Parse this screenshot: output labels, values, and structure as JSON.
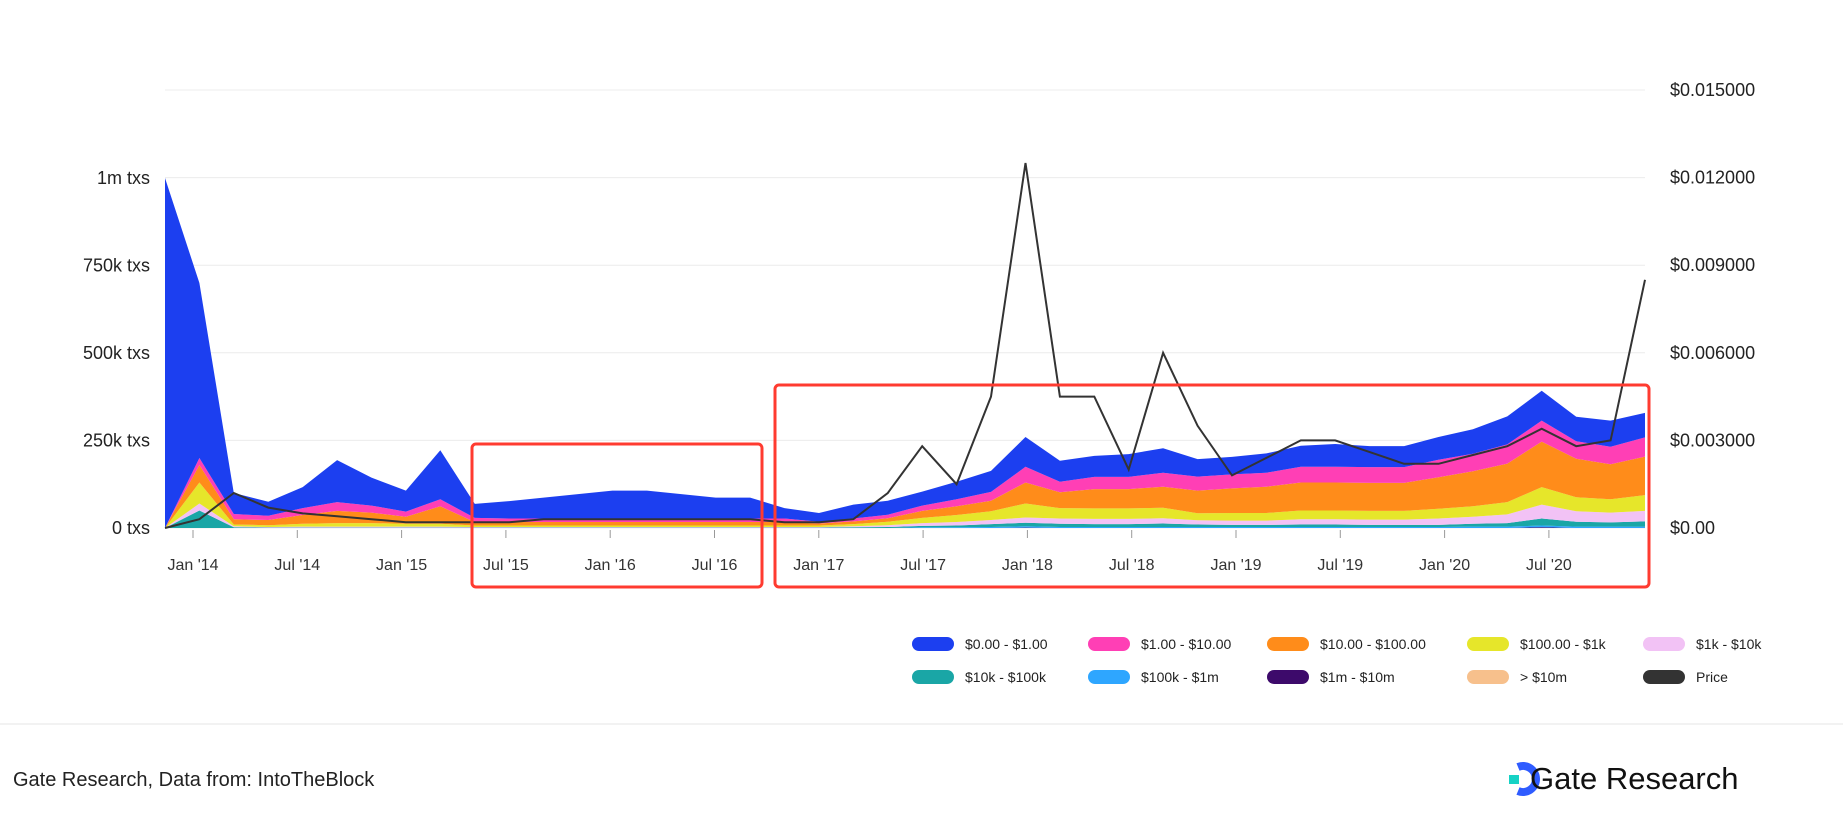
{
  "footer": {
    "source": "Gate Research, Data from: IntoTheBlock",
    "brand": "Gate Research"
  },
  "chart_data": {
    "type": "area",
    "x": [
      "Nov '13",
      "Jan '14",
      "Mar '14",
      "May '14",
      "Jul '14",
      "Sep '14",
      "Nov '14",
      "Jan '15",
      "Mar '15",
      "May '15",
      "Jul '15",
      "Sep '15",
      "Nov '15",
      "Jan '16",
      "Mar '16",
      "May '16",
      "Jul '16",
      "Sep '16",
      "Nov '16",
      "Jan '17",
      "Mar '17",
      "May '17",
      "Jul '17",
      "Sep '17",
      "Nov '17",
      "Jan '18",
      "Mar '18",
      "May '18",
      "Jul '18",
      "Sep '18",
      "Nov '18",
      "Jan '19",
      "Mar '19",
      "May '19",
      "Jul '19",
      "Sep '19",
      "Nov '19",
      "Jan '20",
      "Mar '20",
      "May '20",
      "Jul '20",
      "Sep '20",
      "Nov '20",
      "Dec '20"
    ],
    "x_ticks": [
      "Jan '14",
      "Jul '14",
      "Jan '15",
      "Jul '15",
      "Jan '16",
      "Jul '16",
      "Jan '17",
      "Jul '17",
      "Jan '18",
      "Jul '18",
      "Jan '19",
      "Jul '19",
      "Jan '20",
      "Jul '20"
    ],
    "y_left": {
      "ticks": [
        "0 txs",
        "250k txs",
        "500k txs",
        "750k txs",
        "1m txs"
      ],
      "range": [
        0,
        1250000
      ]
    },
    "y_right": {
      "ticks": [
        "$0.00",
        "$0.003000",
        "$0.006000",
        "$0.009000",
        "$0.012000",
        "$0.015000"
      ],
      "range": [
        0,
        0.015
      ]
    },
    "series": [
      {
        "name": "> $10m",
        "color": "#f7c08c",
        "values": [
          0,
          0,
          0,
          0,
          0,
          0,
          0,
          0,
          0,
          0,
          0,
          0,
          0,
          0,
          0,
          0,
          0,
          0,
          0,
          0,
          0,
          0,
          0,
          0,
          0,
          0,
          0,
          0,
          0,
          0,
          0,
          0,
          0,
          0,
          0,
          0,
          0,
          0,
          0,
          0,
          0,
          0,
          0,
          0
        ]
      },
      {
        "name": "$1m - $10m",
        "color": "#3d0a6b",
        "values": [
          0,
          0,
          0,
          0,
          0,
          0,
          0,
          0,
          0,
          0,
          0,
          0,
          0,
          0,
          0,
          0,
          0,
          0,
          0,
          0,
          0,
          0,
          0,
          0,
          0,
          1000,
          0,
          0,
          0,
          0,
          0,
          0,
          0,
          0,
          0,
          0,
          0,
          0,
          0,
          0,
          2000,
          0,
          0,
          0
        ]
      },
      {
        "name": "$100k - $1m",
        "color": "#2ea6ff",
        "values": [
          0,
          0,
          0,
          0,
          0,
          0,
          0,
          0,
          0,
          0,
          0,
          0,
          0,
          0,
          0,
          0,
          0,
          0,
          0,
          0,
          0,
          0,
          2000,
          2000,
          3000,
          4000,
          3000,
          3000,
          3000,
          3000,
          3000,
          3000,
          3000,
          3000,
          3000,
          3000,
          3000,
          3000,
          4000,
          4000,
          5000,
          4000,
          4000,
          4000
        ]
      },
      {
        "name": "$10k - $100k",
        "color": "#1aa6a6",
        "values": [
          0,
          50000,
          2000,
          1000,
          1000,
          1000,
          1000,
          1000,
          1000,
          1000,
          1000,
          1000,
          1000,
          1000,
          1000,
          1000,
          1000,
          1000,
          1000,
          1000,
          2000,
          3000,
          4000,
          5000,
          8000,
          10000,
          9000,
          8000,
          8000,
          10000,
          7000,
          6000,
          6000,
          7000,
          7000,
          6000,
          6000,
          6000,
          8000,
          10000,
          20000,
          14000,
          12000,
          15000
        ]
      },
      {
        "name": "$1k - $10k",
        "color": "#f2c2f5",
        "values": [
          0,
          20000,
          3000,
          2000,
          3000,
          3000,
          3000,
          3000,
          3000,
          2000,
          2000,
          2000,
          2000,
          2000,
          2000,
          2000,
          2000,
          2000,
          2000,
          2000,
          3000,
          5000,
          8000,
          10000,
          12000,
          15000,
          15000,
          15000,
          15000,
          15000,
          12000,
          12000,
          12000,
          15000,
          15000,
          15000,
          15000,
          18000,
          20000,
          25000,
          40000,
          30000,
          28000,
          30000
        ]
      },
      {
        "name": "$100.00 - $1k",
        "color": "#e6e62a",
        "values": [
          0,
          60000,
          5000,
          5000,
          8000,
          10000,
          10000,
          8000,
          8000,
          4000,
          4000,
          4000,
          4000,
          4000,
          4000,
          4000,
          4000,
          4000,
          4000,
          4000,
          6000,
          10000,
          15000,
          20000,
          25000,
          40000,
          30000,
          30000,
          30000,
          30000,
          20000,
          22000,
          22000,
          25000,
          25000,
          25000,
          25000,
          28000,
          30000,
          35000,
          50000,
          40000,
          38000,
          45000
        ]
      },
      {
        "name": "$10.00 - $100.00",
        "color": "#ff8c1a",
        "values": [
          0,
          50000,
          15000,
          15000,
          25000,
          35000,
          30000,
          20000,
          50000,
          10000,
          10000,
          10000,
          10000,
          10000,
          10000,
          10000,
          10000,
          10000,
          10000,
          6000,
          8000,
          10000,
          20000,
          25000,
          30000,
          60000,
          45000,
          55000,
          55000,
          60000,
          65000,
          70000,
          75000,
          80000,
          80000,
          80000,
          80000,
          90000,
          100000,
          110000,
          130000,
          110000,
          100000,
          110000
        ]
      },
      {
        "name": "$1.00 - $10.00",
        "color": "#ff3fb5",
        "values": [
          0,
          20000,
          15000,
          12000,
          20000,
          25000,
          20000,
          15000,
          20000,
          12000,
          10000,
          10000,
          10000,
          10000,
          10000,
          10000,
          10000,
          10000,
          10000,
          5000,
          8000,
          10000,
          15000,
          20000,
          25000,
          45000,
          30000,
          35000,
          35000,
          40000,
          40000,
          40000,
          40000,
          45000,
          45000,
          45000,
          45000,
          50000,
          50000,
          55000,
          60000,
          50000,
          50000,
          55000
        ]
      },
      {
        "name": "$0.00 - $1.00",
        "color": "#1c3ff0",
        "values": [
          1000000,
          500000,
          60000,
          40000,
          60000,
          120000,
          80000,
          60000,
          140000,
          40000,
          50000,
          60000,
          70000,
          80000,
          80000,
          70000,
          60000,
          60000,
          30000,
          25000,
          40000,
          40000,
          40000,
          50000,
          60000,
          85000,
          60000,
          60000,
          65000,
          70000,
          50000,
          50000,
          55000,
          60000,
          65000,
          60000,
          60000,
          65000,
          70000,
          80000,
          85000,
          70000,
          75000,
          70000
        ]
      },
      {
        "name": "Price",
        "color": "#333333",
        "axis": "right",
        "values": [
          0,
          0.0003,
          0.0012,
          0.0007,
          0.0005,
          0.0004,
          0.0003,
          0.0002,
          0.0002,
          0.0002,
          0.0002,
          0.0003,
          0.0003,
          0.0003,
          0.0003,
          0.0003,
          0.0003,
          0.0003,
          0.0002,
          0.0002,
          0.0003,
          0.0012,
          0.0028,
          0.0015,
          0.0045,
          0.0125,
          0.0045,
          0.0045,
          0.002,
          0.006,
          0.0035,
          0.0018,
          0.0024,
          0.003,
          0.003,
          0.0026,
          0.0022,
          0.0022,
          0.0025,
          0.0028,
          0.0034,
          0.0028,
          0.003,
          0.0085
        ]
      }
    ],
    "legend": {
      "placement": "bottom-right",
      "items": [
        {
          "label": "$0.00 - $1.00",
          "color": "#1c3ff0"
        },
        {
          "label": "$1.00 - $10.00",
          "color": "#ff3fb5"
        },
        {
          "label": "$10.00 - $100.00",
          "color": "#ff8c1a"
        },
        {
          "label": "$100.00 - $1k",
          "color": "#e6e62a"
        },
        {
          "label": "$1k - $10k",
          "color": "#f2c2f5"
        },
        {
          "label": "$10k - $100k",
          "color": "#1aa6a6"
        },
        {
          "label": "$100k - $1m",
          "color": "#2ea6ff"
        },
        {
          "label": "$1m - $10m",
          "color": "#3d0a6b"
        },
        {
          "label": "> $10m",
          "color": "#f7c08c"
        },
        {
          "label": "Price",
          "color": "#333333"
        }
      ]
    },
    "highlight_color": "#ff3b30",
    "grid": true
  }
}
